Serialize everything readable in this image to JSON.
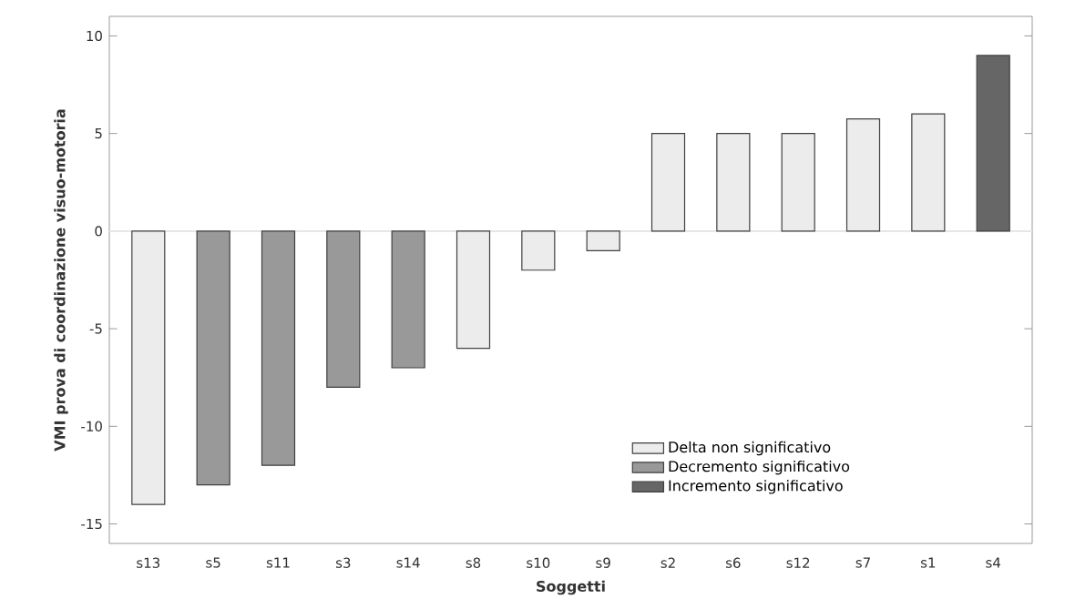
{
  "chart_data": {
    "type": "bar",
    "xlabel": "Soggetti",
    "ylabel": "VMI prova di coordinazione visuo-motoria",
    "categories": [
      "s13",
      "s5",
      "s11",
      "s3",
      "s14",
      "s8",
      "s10",
      "s9",
      "s2",
      "s6",
      "s12",
      "s7",
      "s1",
      "s4"
    ],
    "series": [
      {
        "name": "Delta non significativo",
        "color": "#ececec",
        "values": [
          -14,
          null,
          null,
          null,
          null,
          -6,
          -2,
          -1,
          5,
          5,
          5,
          5.75,
          6,
          null
        ]
      },
      {
        "name": "Decremento significativo",
        "color": "#999999",
        "values": [
          null,
          -13,
          -12,
          -8,
          -7,
          null,
          null,
          null,
          null,
          null,
          null,
          null,
          null,
          null
        ]
      },
      {
        "name": "Incremento significativo",
        "color": "#666666",
        "values": [
          null,
          null,
          null,
          null,
          null,
          null,
          null,
          null,
          null,
          null,
          null,
          null,
          null,
          9
        ]
      }
    ],
    "ylim": [
      -16,
      11
    ],
    "yticks": [
      -15,
      -10,
      -5,
      0,
      5,
      10
    ],
    "ref_lines": [
      {
        "axis": "y",
        "value": 0,
        "color": "#e6e6e6"
      }
    ],
    "legend": "bottom right"
  }
}
